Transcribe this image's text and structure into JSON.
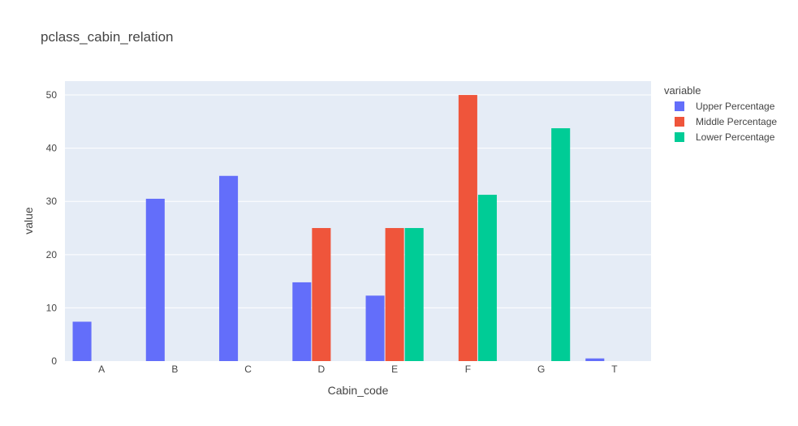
{
  "chart_data": {
    "type": "bar",
    "title": "pclass_cabin_relation",
    "xlabel": "Cabin_code",
    "ylabel": "value",
    "categories": [
      "A",
      "B",
      "C",
      "D",
      "E",
      "F",
      "G",
      "T"
    ],
    "ylim": [
      0,
      52.6
    ],
    "yticks": [
      0,
      10,
      20,
      30,
      40,
      50
    ],
    "grid": true,
    "legend_position": "top-right",
    "legend_title": "variable",
    "series": [
      {
        "name": "Upper Percentage",
        "color": "#636efa",
        "values": [
          7.4,
          30.5,
          34.8,
          14.8,
          12.3,
          0,
          0,
          0.5
        ]
      },
      {
        "name": "Middle Percentage",
        "color": "#ef553b",
        "values": [
          0,
          0,
          0,
          25,
          25,
          50,
          0,
          0
        ]
      },
      {
        "name": "Lower Percentage",
        "color": "#00cc96",
        "values": [
          0,
          0,
          0,
          0,
          25,
          31.25,
          43.75,
          0
        ]
      }
    ]
  }
}
